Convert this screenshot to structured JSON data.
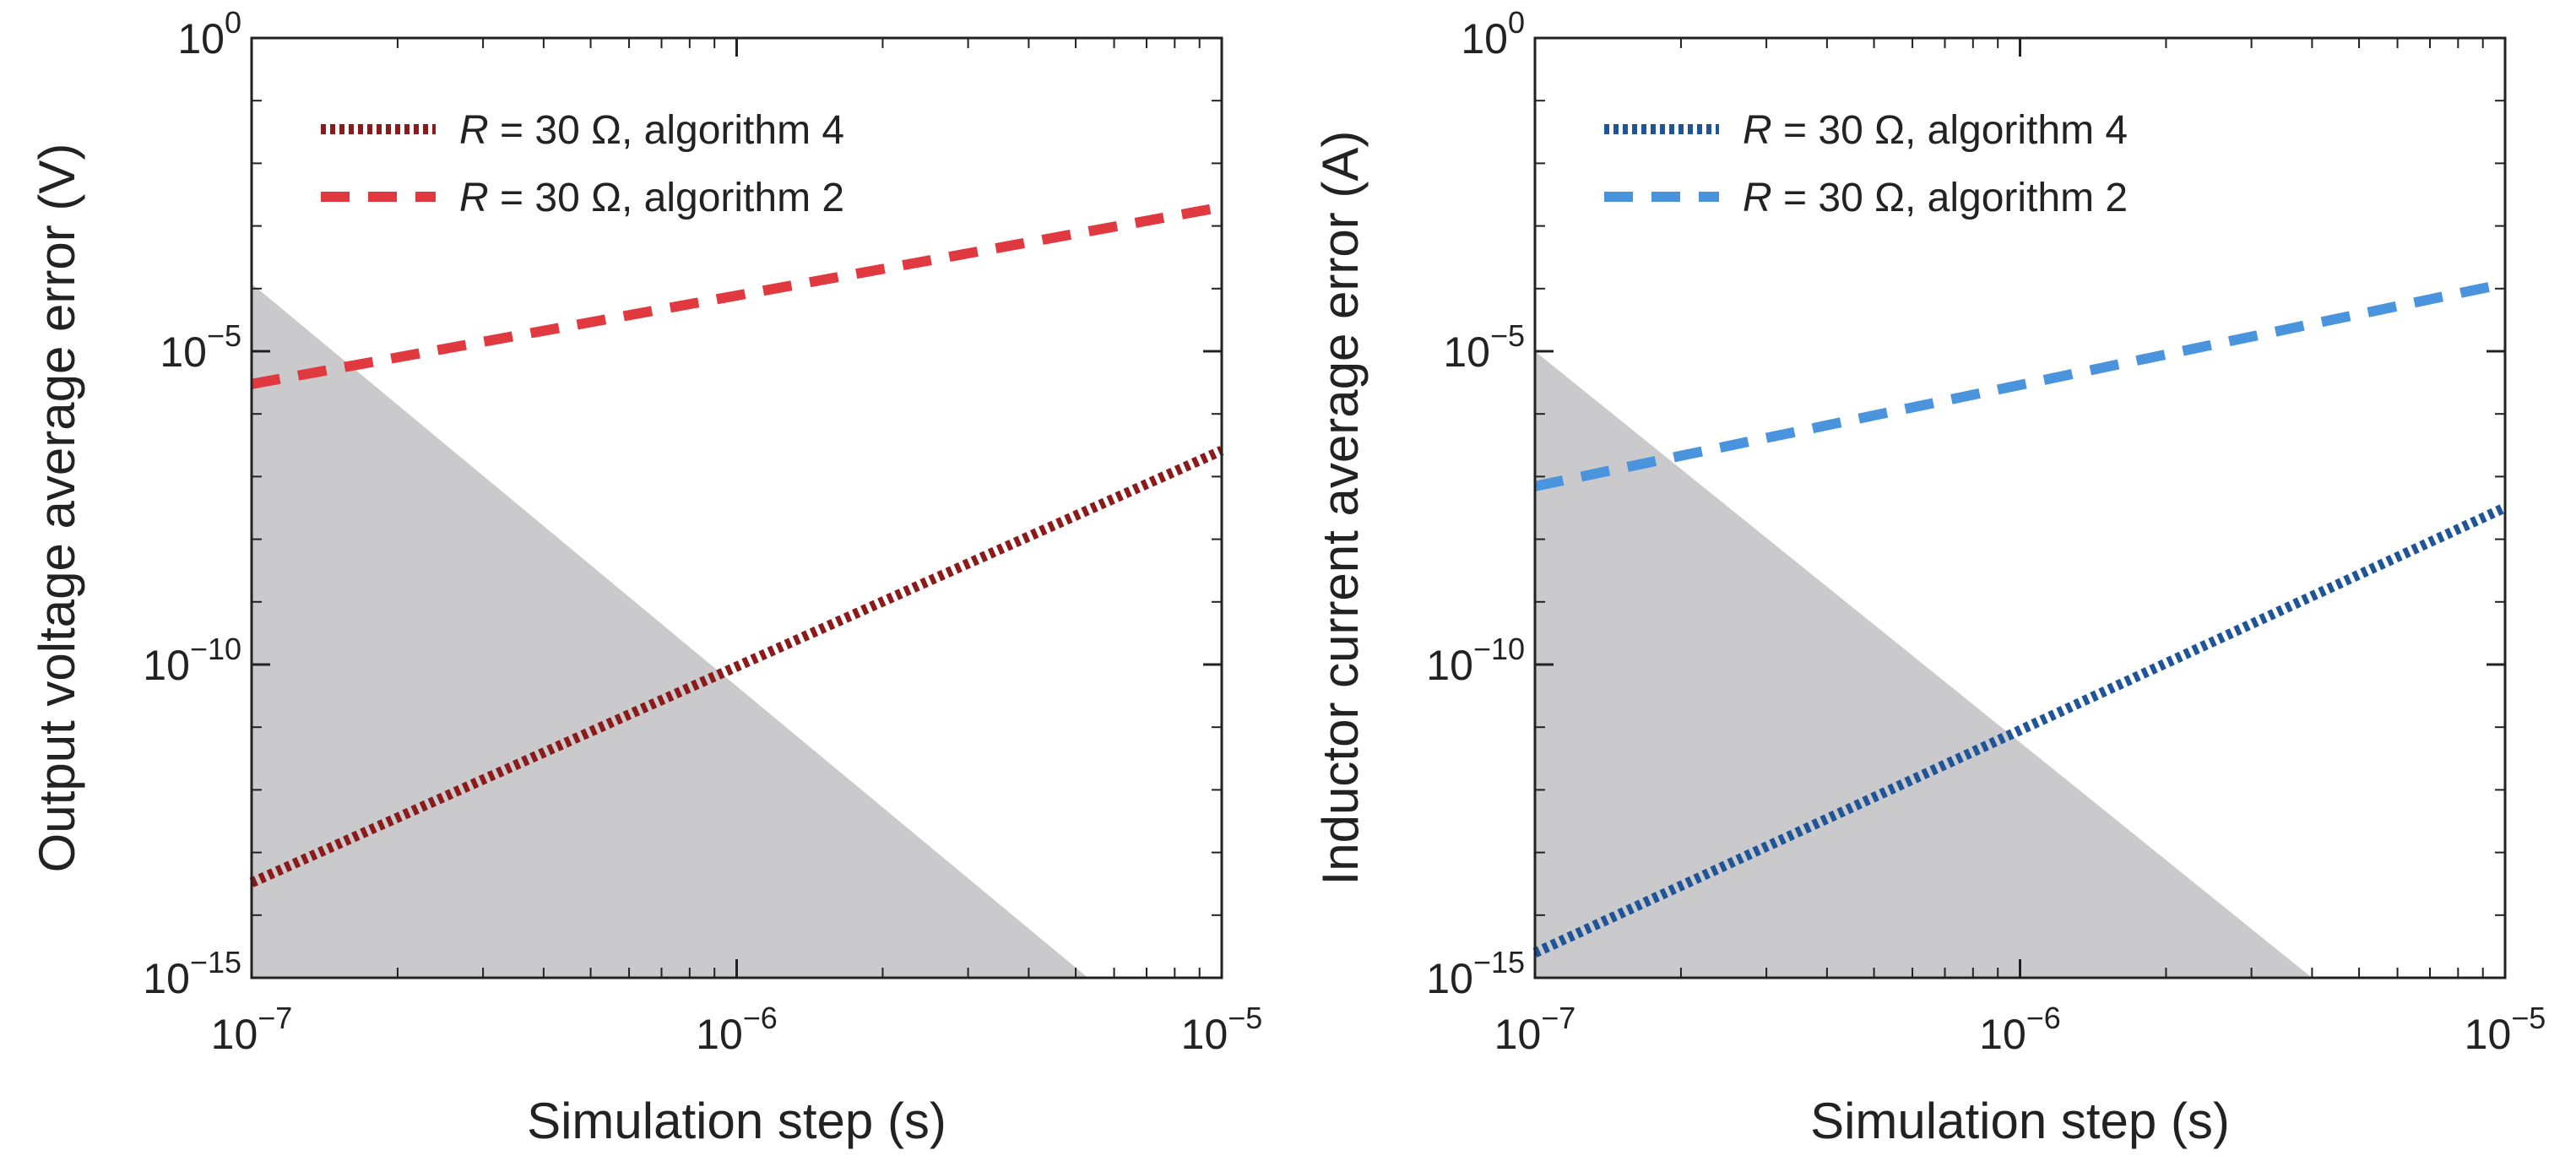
{
  "chart_data": [
    {
      "type": "line",
      "scale": {
        "x": "log",
        "y": "log"
      },
      "xlim": [
        1e-07,
        1e-05
      ],
      "ylim": [
        1e-15,
        1
      ],
      "xlabel": "Simulation step (s)",
      "ylabel": "Output voltage average error (V)",
      "x_ticks": [
        {
          "value": 1e-07,
          "base": "10",
          "exp": "−7"
        },
        {
          "value": 1e-06,
          "base": "10",
          "exp": "−6"
        },
        {
          "value": 1e-05,
          "base": "10",
          "exp": "−5"
        }
      ],
      "y_ticks": [
        {
          "value": 1e-15,
          "base": "10",
          "exp": "−15"
        },
        {
          "value": 1e-10,
          "base": "10",
          "exp": "−10"
        },
        {
          "value": 1e-05,
          "base": "10",
          "exp": "−5"
        },
        {
          "value": 1,
          "base": "10",
          "exp": "0"
        }
      ],
      "shaded_region": {
        "color": "#cacacc",
        "points": [
          [
            1e-07,
            1e-15
          ],
          [
            1e-07,
            0.00012
          ],
          [
            5.3e-06,
            1e-15
          ]
        ]
      },
      "series": [
        {
          "name_prefix": "R",
          "name_suffix": " = 30 Ω, algorithm 4",
          "style": "dotted",
          "color": "#8b1a1a",
          "x": [
            1e-07,
            1e-05
          ],
          "y": [
            3.3e-14,
            2.6e-07
          ]
        },
        {
          "name_prefix": "R",
          "name_suffix": " = 30 Ω, algorithm 2",
          "style": "dashed",
          "color": "#e0393f",
          "x": [
            1e-07,
            1e-05
          ],
          "y": [
            3e-06,
            0.002
          ]
        }
      ]
    },
    {
      "type": "line",
      "scale": {
        "x": "log",
        "y": "log"
      },
      "xlim": [
        1e-07,
        1e-05
      ],
      "ylim": [
        1e-15,
        1
      ],
      "xlabel": "Simulation step (s)",
      "ylabel": "Inductor current average error (A)",
      "x_ticks": [
        {
          "value": 1e-07,
          "base": "10",
          "exp": "−7"
        },
        {
          "value": 1e-06,
          "base": "10",
          "exp": "−6"
        },
        {
          "value": 1e-05,
          "base": "10",
          "exp": "−5"
        }
      ],
      "y_ticks": [
        {
          "value": 1e-15,
          "base": "10",
          "exp": "−15"
        },
        {
          "value": 1e-10,
          "base": "10",
          "exp": "−10"
        },
        {
          "value": 1e-05,
          "base": "10",
          "exp": "−5"
        },
        {
          "value": 1,
          "base": "10",
          "exp": "0"
        }
      ],
      "shaded_region": {
        "color": "#cacacc",
        "points": [
          [
            1e-07,
            1e-15
          ],
          [
            1e-07,
            1e-05
          ],
          [
            4e-06,
            1e-15
          ]
        ]
      },
      "series": [
        {
          "name_prefix": "R",
          "name_suffix": " = 30 Ω, algorithm 4",
          "style": "dotted",
          "color": "#1f5597",
          "x": [
            1e-07,
            1e-05
          ],
          "y": [
            2.5e-15,
            3.2e-08
          ]
        },
        {
          "name_prefix": "R",
          "name_suffix": " = 30 Ω, algorithm 2",
          "style": "dashed",
          "color": "#4a94dd",
          "x": [
            1e-07,
            1e-05
          ],
          "y": [
            7e-08,
            0.00012
          ]
        }
      ]
    }
  ]
}
